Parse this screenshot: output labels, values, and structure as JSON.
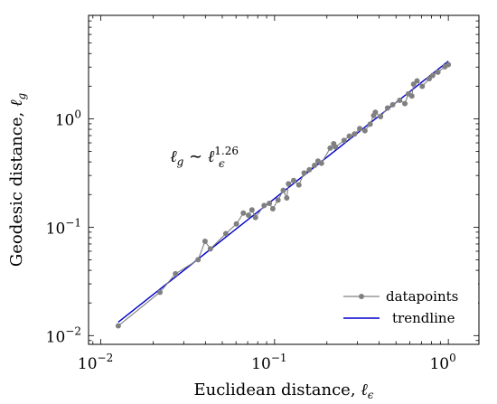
{
  "chart_data": {
    "type": "scatter",
    "scale": {
      "x": "log",
      "y": "log"
    },
    "xlim": [
      0.0085,
      1.5
    ],
    "ylim": [
      0.0083,
      9.0
    ],
    "xlabel_text": "Euclidean distance, ",
    "xlabel_sym": "ℓ",
    "xlabel_sub": "ϵ",
    "ylabel_text": "Geodesic distance, ",
    "ylabel_sym": "ℓ",
    "ylabel_sub": "g",
    "x_ticks": [
      {
        "value": 0.01,
        "base": "10",
        "exp": "−2"
      },
      {
        "value": 0.1,
        "base": "10",
        "exp": "−1"
      },
      {
        "value": 1,
        "base": "10",
        "exp": "0"
      }
    ],
    "y_ticks": [
      {
        "value": 0.01,
        "base": "10",
        "exp": "−2"
      },
      {
        "value": 0.1,
        "base": "10",
        "exp": "−1"
      },
      {
        "value": 1,
        "base": "10",
        "exp": "0"
      }
    ],
    "annotation": {
      "lhs": "ℓ",
      "lhs_sub": "g",
      "op": " ∼ ",
      "rhs": "ℓ",
      "rhs_sub": "ϵ",
      "rhs_sup": "1.26",
      "x": 0.025,
      "y": 0.4
    },
    "legend_position": "bottom-right",
    "series": [
      {
        "name": "datapoints",
        "color": "#808080",
        "marker": "circle",
        "x": [
          0.0126,
          0.0219,
          0.0269,
          0.0363,
          0.0398,
          0.0427,
          0.0524,
          0.0603,
          0.0661,
          0.0708,
          0.0741,
          0.0776,
          0.0871,
          0.0933,
          0.0977,
          0.1047,
          0.1122,
          0.1175,
          0.1202,
          0.1288,
          0.138,
          0.1479,
          0.1585,
          0.1698,
          0.1778,
          0.1862,
          0.2089,
          0.2188,
          0.2239,
          0.2512,
          0.2692,
          0.2884,
          0.309,
          0.3311,
          0.3548,
          0.3715,
          0.3802,
          0.4074,
          0.4467,
          0.4786,
          0.5248,
          0.5623,
          0.5888,
          0.6166,
          0.631,
          0.6607,
          0.7079,
          0.7762,
          0.8128,
          0.871,
          0.955,
          1.0
        ],
        "y": [
          0.0123,
          0.0251,
          0.0372,
          0.0501,
          0.0741,
          0.0631,
          0.0871,
          0.1072,
          0.1349,
          0.1288,
          0.1445,
          0.123,
          0.1585,
          0.166,
          0.1479,
          0.1778,
          0.2188,
          0.1862,
          0.2512,
          0.2692,
          0.2455,
          0.3162,
          0.3388,
          0.3715,
          0.4074,
          0.389,
          0.537,
          0.5888,
          0.5495,
          0.631,
          0.6918,
          0.7244,
          0.8128,
          0.7762,
          0.8913,
          1.0715,
          1.1482,
          1.0471,
          1.2589,
          1.349,
          1.4791,
          1.3804,
          1.6982,
          1.6218,
          2.0893,
          2.2387,
          1.9953,
          2.3442,
          2.5119,
          2.6915,
          3.02,
          3.1623
        ]
      },
      {
        "name": "trendline",
        "color": "#0000cc",
        "slope": 1.26,
        "x": [
          0.0126,
          1.0
        ],
        "y": [
          0.0133,
          3.4
        ]
      }
    ]
  }
}
